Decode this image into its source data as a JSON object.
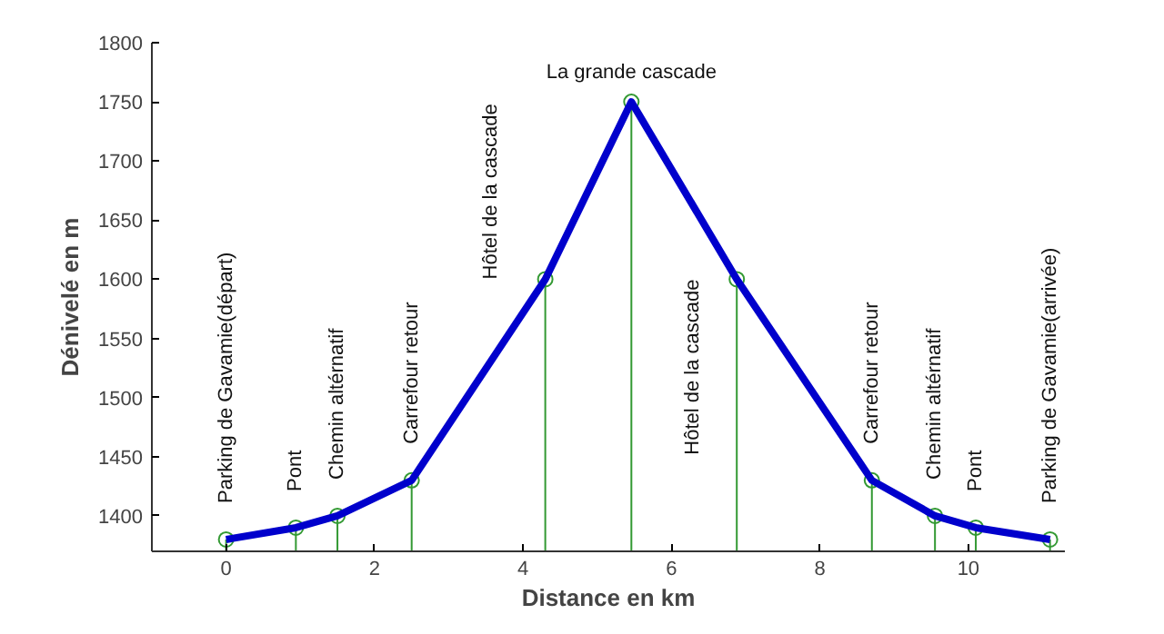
{
  "chart_data": {
    "type": "line",
    "xlabel": "Distance en km",
    "ylabel": "Dénivelé en m",
    "x": [
      0,
      0.94,
      1.5,
      2.5,
      4.3,
      5.46,
      6.88,
      8.7,
      9.55,
      10.1,
      11.1
    ],
    "series": [
      {
        "color": "#0000cc",
        "values": [
          1380,
          1390,
          1400,
          1430,
          1600,
          1750,
          1600,
          1430,
          1400,
          1390,
          1380
        ]
      },
      {
        "type": "lollipop",
        "color": "#339933",
        "marker": "circle",
        "values": [
          1380,
          1390,
          1400,
          1430,
          1600,
          1750,
          1600,
          1430,
          1400,
          1390,
          1380
        ]
      }
    ],
    "xlim": [
      -1,
      11.3
    ],
    "ylim": [
      1370,
      1800
    ],
    "xticks": [
      0,
      2,
      4,
      6,
      8,
      10
    ],
    "yticks": [
      1400,
      1450,
      1500,
      1550,
      1600,
      1650,
      1700,
      1750,
      1800
    ],
    "grid": false,
    "annotations": [
      {
        "text": "Parking de Gavamie(départ)",
        "x": 0,
        "y": 1380
      },
      {
        "text": "Pont",
        "x": 0.94,
        "y": 1390
      },
      {
        "text": "Chemin altérnatif",
        "x": 1.5,
        "y": 1400
      },
      {
        "text": "Carrefour retour",
        "x": 2.5,
        "y": 1430
      },
      {
        "text": "Hôtel de la cascade",
        "x": 4.3,
        "y": 1600
      },
      {
        "text": "La grande cascade",
        "x": 5.46,
        "y": 1750
      },
      {
        "text": "Hôtel de la cascade",
        "x": 6.88,
        "y": 1600
      },
      {
        "text": "Carrefour retour",
        "x": 8.7,
        "y": 1430
      },
      {
        "text": "Chemin altérnatif",
        "x": 9.55,
        "y": 1400
      },
      {
        "text": "Pont",
        "x": 10.1,
        "y": 1390
      },
      {
        "text": "Parking de Gavamie(arrivée)",
        "x": 11.1,
        "y": 1380
      }
    ]
  }
}
